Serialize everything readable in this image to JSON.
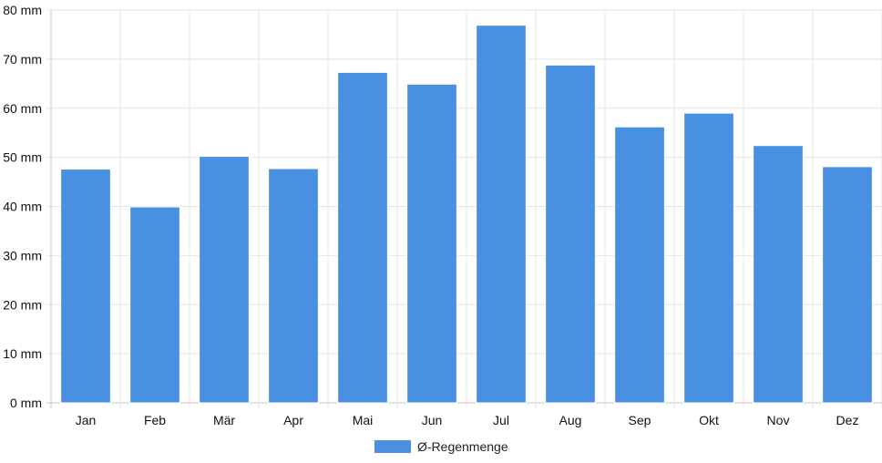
{
  "chart_data": {
    "type": "bar",
    "categories": [
      "Jan",
      "Feb",
      "Mär",
      "Apr",
      "Mai",
      "Jun",
      "Jul",
      "Aug",
      "Sep",
      "Okt",
      "Nov",
      "Dez"
    ],
    "series": [
      {
        "name": "Ø-Regenmenge",
        "color": "#4a90e2",
        "values": [
          47.6,
          39.9,
          50.2,
          47.7,
          67.3,
          64.9,
          76.9,
          68.8,
          56.2,
          59.0,
          52.4,
          48.1
        ]
      }
    ],
    "y_unit_suffix": " mm",
    "ylim": [
      0,
      80
    ],
    "y_ticks": [
      0,
      10,
      20,
      30,
      40,
      50,
      60,
      70,
      80
    ],
    "grid": true,
    "legend_position": "bottom"
  }
}
